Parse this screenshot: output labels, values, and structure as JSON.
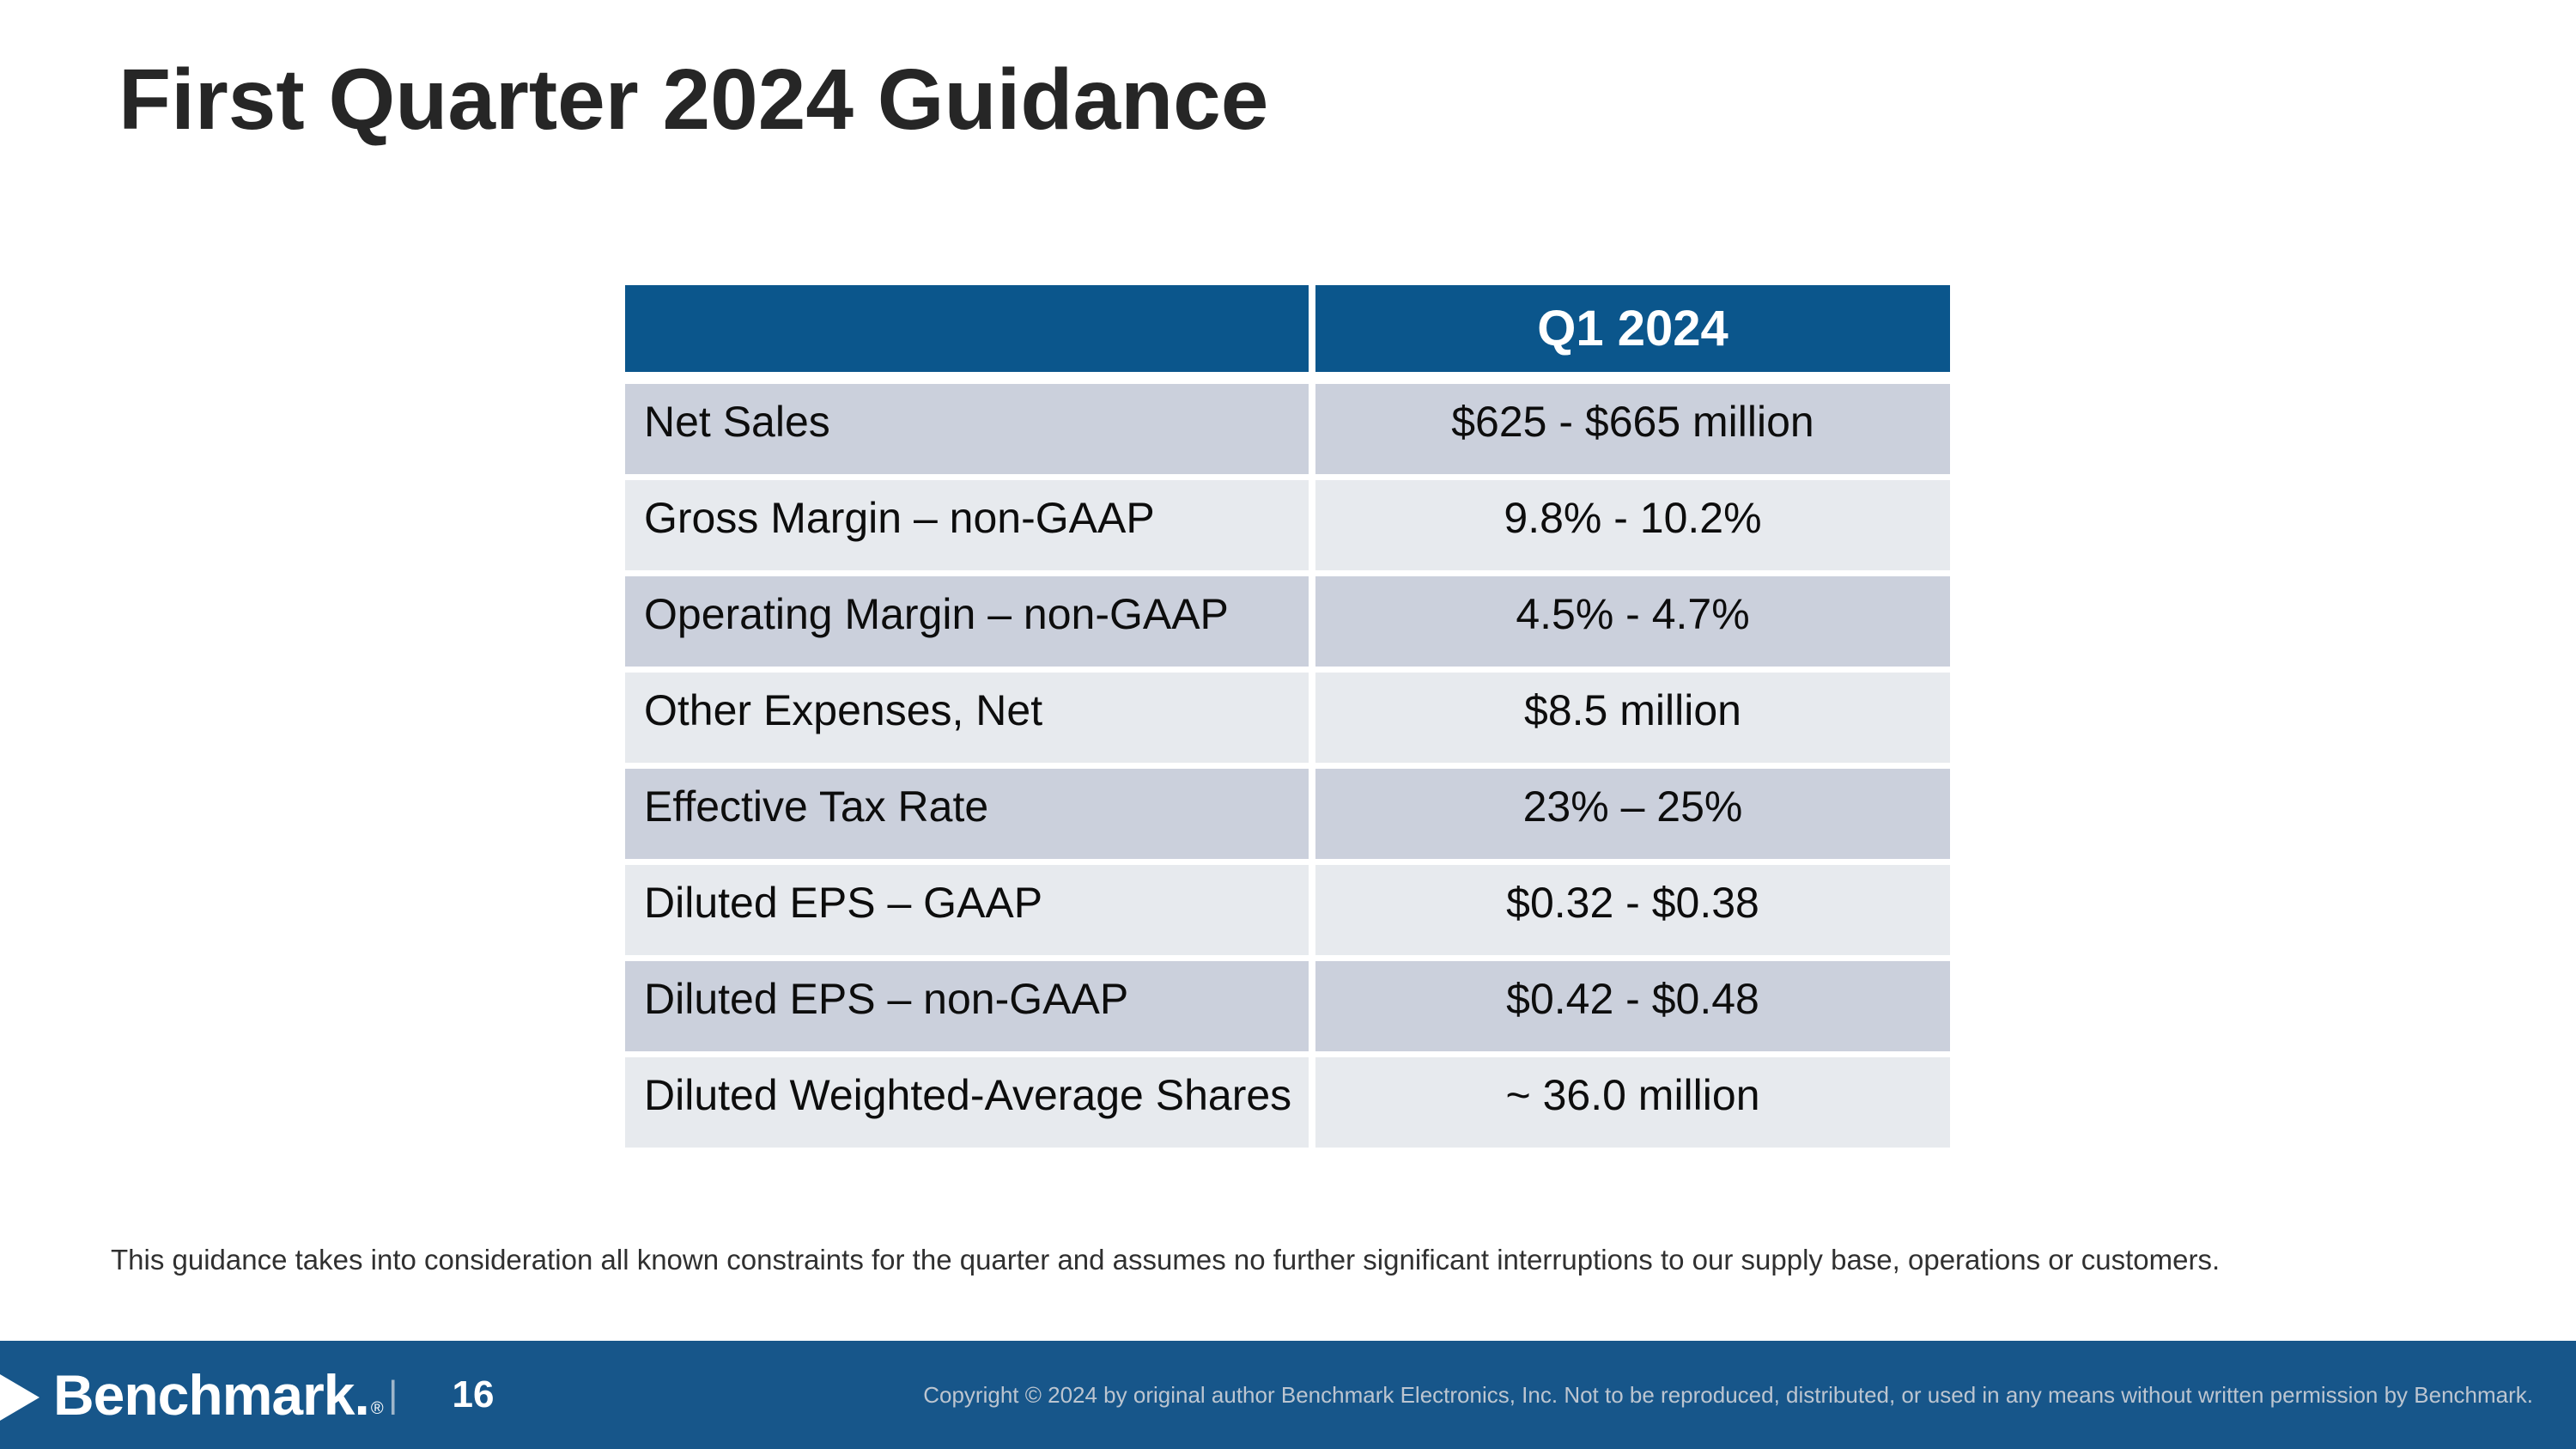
{
  "slide": {
    "title": "First Quarter 2024 Guidance",
    "footnote": "This guidance takes into consideration all known constraints for the quarter and assumes no further significant interruptions to our supply base, operations or customers."
  },
  "table": {
    "header": {
      "label": "",
      "value": "Q1 2024"
    },
    "rows": [
      {
        "label": "Net Sales",
        "value": "$625 - $665 million"
      },
      {
        "label": "Gross Margin – non-GAAP",
        "value": "9.8% - 10.2%"
      },
      {
        "label": "Operating Margin – non-GAAP",
        "value": "4.5% - 4.7%"
      },
      {
        "label": "Other Expenses, Net",
        "value": "$8.5 million"
      },
      {
        "label": "Effective Tax Rate",
        "value": "23% – 25%"
      },
      {
        "label": "Diluted EPS – GAAP",
        "value": "$0.32 - $0.38"
      },
      {
        "label": "Diluted EPS – non-GAAP",
        "value": "$0.42 - $0.48"
      },
      {
        "label": "Diluted Weighted-Average Shares",
        "value": "~ 36.0 million"
      }
    ]
  },
  "footer": {
    "brand": "Benchmark.",
    "registered": "®",
    "separator": "|",
    "page_number": "16",
    "copyright": "Copyright © 2024 by original author Benchmark Electronics, Inc. Not to be reproduced, distributed, or used in any means without written permission by Benchmark."
  },
  "colors": {
    "header_blue": "#0B568C",
    "footer_blue": "#17568A",
    "row_dark": "#CBD0DC",
    "row_light": "#E7EAEE",
    "title_text": "#262626",
    "copyright_text": "#BCC5D0"
  }
}
